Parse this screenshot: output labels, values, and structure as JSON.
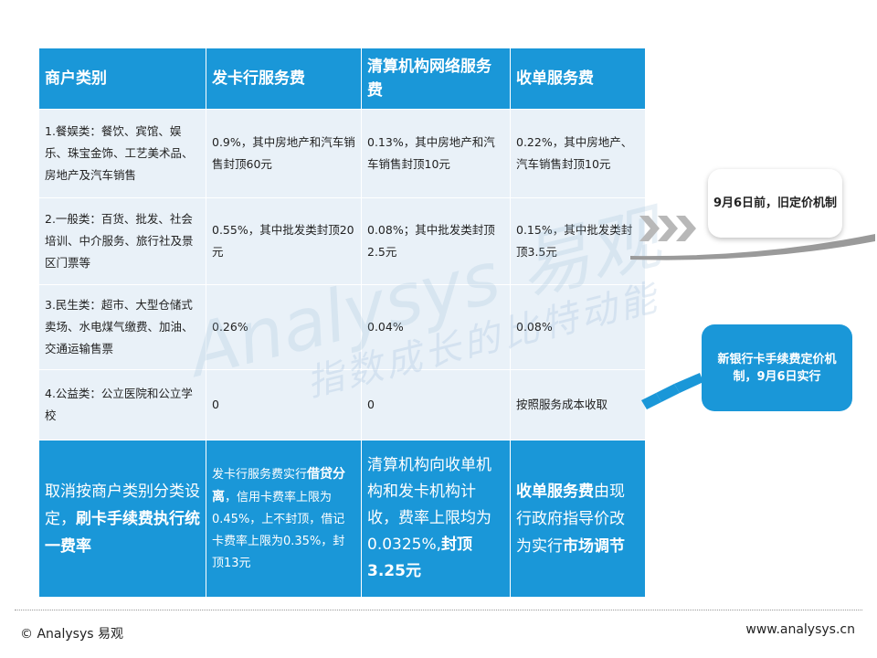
{
  "table": {
    "headers": [
      "商户类别",
      "发卡行服务费",
      "清算机构网络服务费",
      "收单服务费"
    ],
    "rows": [
      [
        "1.餐娱类：餐饮、宾馆、娱乐、珠宝金饰、工艺美术品、房地产及汽车销售",
        "0.9%，其中房地产和汽车销售封顶60元",
        "0.13%，其中房地产和汽车销售封顶10元",
        "0.22%，其中房地产、汽车销售封顶10元"
      ],
      [
        "2.一般类：百货、批发、社会培训、中介服务、旅行社及景区门票等",
        "0.55%，其中批发类封顶20元",
        "0.08%；其中批发类封顶2.5元",
        "0.15%，其中批发类封顶3.5元"
      ],
      [
        "3.民生类：超市、大型仓储式卖场、水电煤气缴费、加油、交通运输售票",
        "0.26%",
        "0.04%",
        "0.08%"
      ],
      [
        "4.公益类：公立医院和公立学校",
        "0",
        "0",
        "按照服务成本收取"
      ]
    ],
    "bottom": {
      "c1_pre": "取消按商户类别分类设定，",
      "c1_bold": "刷卡手续费执行统一费率",
      "c2_pre": "发卡行服务费实行",
      "c2_bold": "借贷分离",
      "c2_post": "，信用卡费率上限为0.45%，上不封顶，借记卡费率上限为0.35%，封顶13元",
      "c3_pre": "清算机构向收单机构和发卡机构计收，费率上限均为0.0325%,",
      "c3_bold": "封顶3.25元",
      "c4_bold1": "收单服务费",
      "c4_mid": "由现行政府指导价改为实行",
      "c4_bold2": "市场调节"
    }
  },
  "callouts": {
    "old": "9月6日前，旧定价机制",
    "new": "新银行卡手续费定价机制，9月6日实行"
  },
  "watermark": {
    "main": "Analysys 易观",
    "sub": "指数成长的比特动能"
  },
  "footer": {
    "left": "© Analysys 易观",
    "right": "www.analysys.cn"
  },
  "colors": {
    "accent": "#1a97d8",
    "cell_bg": "#e9f1f8"
  }
}
